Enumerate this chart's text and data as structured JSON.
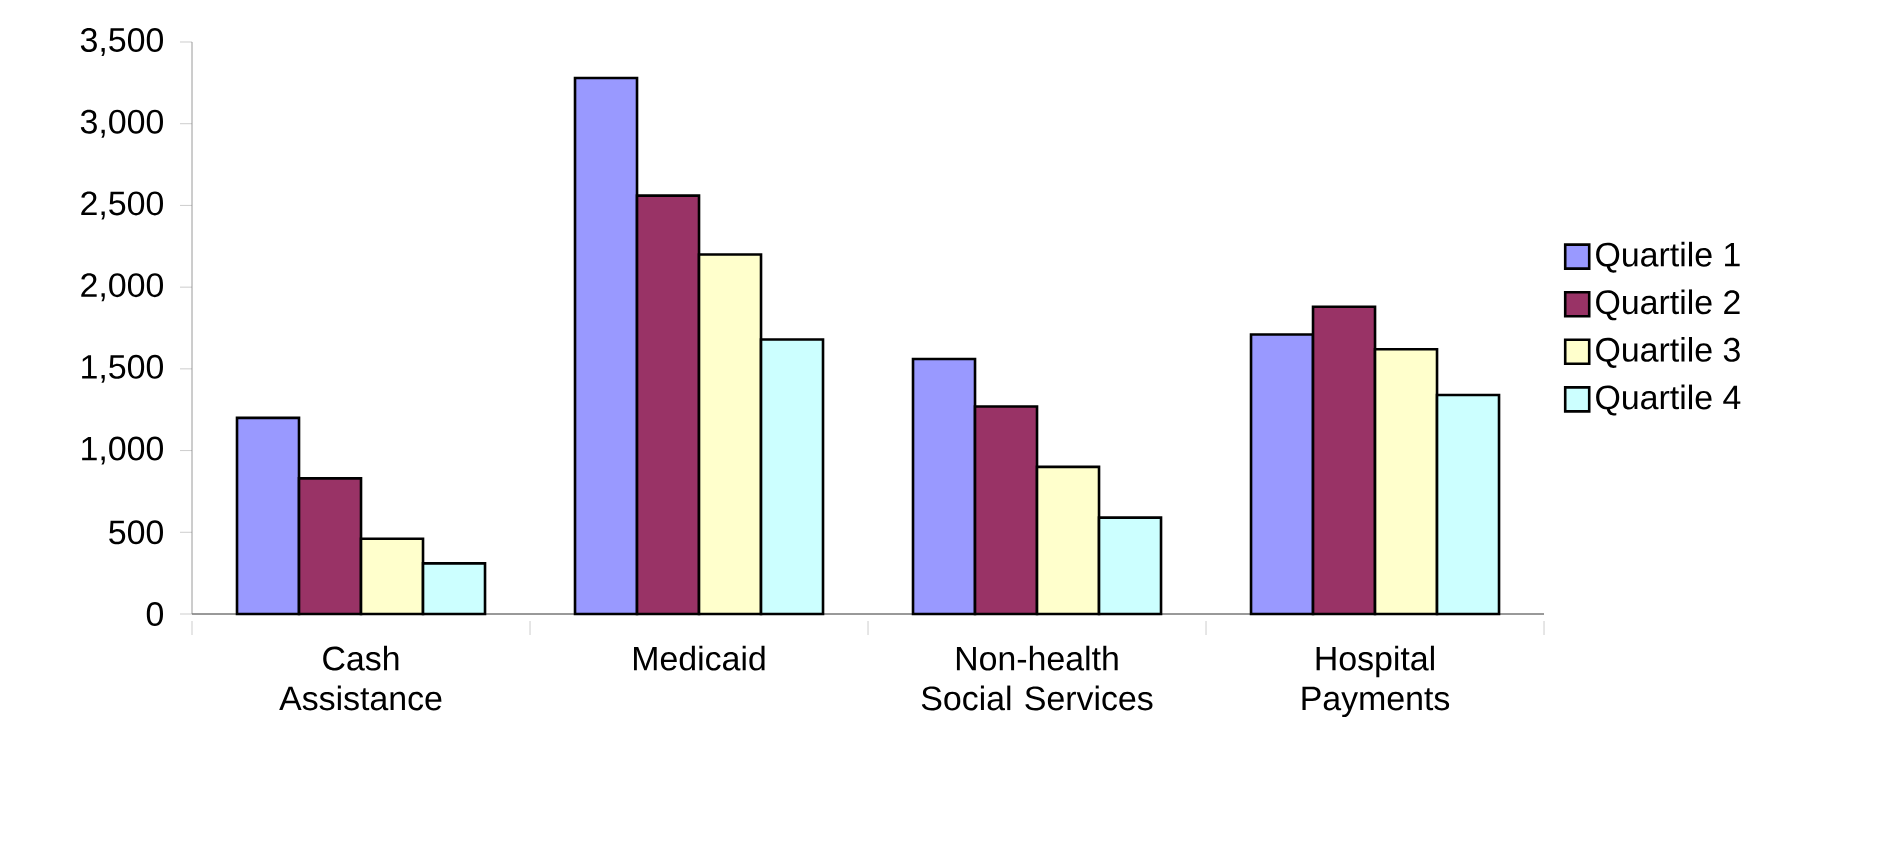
{
  "chart_data": {
    "type": "bar",
    "categories": [
      "Cash Assistance",
      "Medicaid",
      "Non-health Social Services",
      "Hospital Payments"
    ],
    "series": [
      {
        "name": "Quartile 1",
        "color": "#9999ff",
        "values": [
          1200,
          3280,
          1560,
          1710
        ]
      },
      {
        "name": "Quartile 2",
        "color": "#993366",
        "values": [
          830,
          2560,
          1270,
          1880
        ]
      },
      {
        "name": "Quartile 3",
        "color": "#ffffcc",
        "values": [
          460,
          2200,
          900,
          1620
        ]
      },
      {
        "name": "Quartile 4",
        "color": "#ccffff",
        "values": [
          310,
          1680,
          590,
          1340
        ]
      }
    ],
    "ylim": [
      0,
      3500
    ],
    "yticks": [
      {
        "value": 0,
        "label": "0"
      },
      {
        "value": 500,
        "label": "500"
      },
      {
        "value": 1000,
        "label": "1,000"
      },
      {
        "value": 1500,
        "label": "1,500"
      },
      {
        "value": 2000,
        "label": "2,000"
      },
      {
        "value": 2500,
        "label": "2,500"
      },
      {
        "value": 3000,
        "label": "3,000"
      },
      {
        "value": 3500,
        "label": "3,500"
      }
    ],
    "grid": false,
    "legend": "right"
  }
}
